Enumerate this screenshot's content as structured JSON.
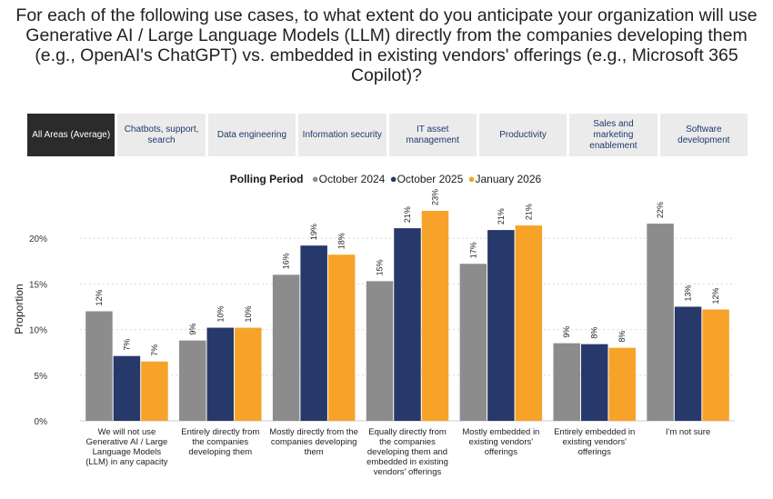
{
  "question": "For each of the following use cases, to what extent do you anticipate your organization will use Generative AI / Large Language Models (LLM) directly from the companies developing them (e.g., OpenAI's ChatGPT) vs. embedded in existing vendors' offerings (e.g., Microsoft 365 Copilot)?",
  "tabs": [
    {
      "label": "All Areas (Average)",
      "active": true
    },
    {
      "label": "Chatbots, support, search",
      "active": false
    },
    {
      "label": "Data engineering",
      "active": false
    },
    {
      "label": "Information security",
      "active": false
    },
    {
      "label": "IT asset management",
      "active": false
    },
    {
      "label": "Productivity",
      "active": false
    },
    {
      "label": "Sales and marketing enablement",
      "active": false
    },
    {
      "label": "Software development",
      "active": false
    }
  ],
  "legend": {
    "title": "Polling Period",
    "dot": "●",
    "items": [
      "October 2024",
      "October 2025",
      "January 2026"
    ]
  },
  "colors": {
    "October 2024": "#8c8c8c",
    "October 2025": "#27386a",
    "January 2026": "#f7a329"
  },
  "chart_data": {
    "type": "bar",
    "title": "",
    "xlabel": "",
    "ylabel": "Proportion",
    "ylim": [
      0,
      23
    ],
    "yticks": [
      0,
      5,
      10,
      15,
      20
    ],
    "ytick_labels": [
      "0%",
      "5%",
      "10%",
      "15%",
      "20%"
    ],
    "grid": true,
    "categories": [
      "We will not use Generative AI / Large Language Models (LLM) in any capacity",
      "Entirely directly from the companies developing them",
      "Mostly directly from the companies developing them",
      "Equally directly from the companies developing them and embedded in existing vendors' offerings",
      "Mostly embedded in existing vendors' offerings",
      "Entirely embedded in existing vendors' offerings",
      "I'm not sure"
    ],
    "series": [
      {
        "name": "October 2024",
        "values": [
          12,
          8.8,
          16,
          15.3,
          17.2,
          8.5,
          21.6
        ],
        "labels": [
          "12%",
          "9%",
          "16%",
          "15%",
          "17%",
          "9%",
          "22%"
        ]
      },
      {
        "name": "October 2025",
        "values": [
          7.1,
          10.2,
          19.2,
          21.1,
          20.9,
          8.4,
          12.5
        ],
        "labels": [
          "7%",
          "10%",
          "19%",
          "21%",
          "21%",
          "8%",
          "13%"
        ]
      },
      {
        "name": "January 2026",
        "values": [
          6.5,
          10.2,
          18.2,
          23,
          21.4,
          8,
          12.2
        ],
        "labels": [
          "7%",
          "10%",
          "18%",
          "23%",
          "21%",
          "8%",
          "12%"
        ]
      }
    ]
  }
}
